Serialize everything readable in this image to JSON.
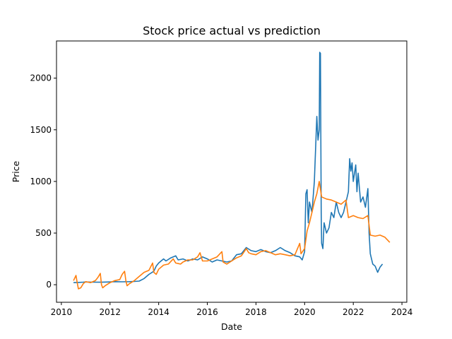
{
  "chart_data": {
    "type": "line",
    "title": "Stock price actual vs prediction",
    "xlabel": "Date",
    "ylabel": "Price",
    "xlim": [
      2009.8,
      2024.2
    ],
    "ylim": [
      -170,
      2360
    ],
    "xticks": [
      {
        "value": 2010,
        "label": "2010"
      },
      {
        "value": 2012,
        "label": "2012"
      },
      {
        "value": 2014,
        "label": "2014"
      },
      {
        "value": 2016,
        "label": "2016"
      },
      {
        "value": 2018,
        "label": "2018"
      },
      {
        "value": 2020,
        "label": "2020"
      },
      {
        "value": 2022,
        "label": "2022"
      },
      {
        "value": 2024,
        "label": "2024"
      }
    ],
    "yticks": [
      {
        "value": 0,
        "label": "0"
      },
      {
        "value": 500,
        "label": "500"
      },
      {
        "value": 1000,
        "label": "1000"
      },
      {
        "value": 1500,
        "label": "1500"
      },
      {
        "value": 2000,
        "label": "2000"
      }
    ],
    "grid": false,
    "series": [
      {
        "color": "#1f77b4",
        "points": [
          [
            2010.5,
            20
          ],
          [
            2010.7,
            22
          ],
          [
            2010.9,
            25
          ],
          [
            2011.0,
            27
          ],
          [
            2011.3,
            25
          ],
          [
            2011.6,
            24
          ],
          [
            2011.9,
            26
          ],
          [
            2012.2,
            30
          ],
          [
            2012.5,
            28
          ],
          [
            2012.8,
            30
          ],
          [
            2013.0,
            32
          ],
          [
            2013.2,
            35
          ],
          [
            2013.4,
            60
          ],
          [
            2013.6,
            100
          ],
          [
            2013.8,
            130
          ],
          [
            2013.9,
            180
          ],
          [
            2014.0,
            210
          ],
          [
            2014.1,
            230
          ],
          [
            2014.2,
            250
          ],
          [
            2014.3,
            230
          ],
          [
            2014.5,
            260
          ],
          [
            2014.7,
            280
          ],
          [
            2014.8,
            240
          ],
          [
            2015.0,
            250
          ],
          [
            2015.2,
            230
          ],
          [
            2015.4,
            250
          ],
          [
            2015.6,
            240
          ],
          [
            2015.8,
            270
          ],
          [
            2016.0,
            250
          ],
          [
            2016.2,
            220
          ],
          [
            2016.4,
            240
          ],
          [
            2016.6,
            230
          ],
          [
            2016.8,
            220
          ],
          [
            2017.0,
            230
          ],
          [
            2017.2,
            290
          ],
          [
            2017.4,
            300
          ],
          [
            2017.6,
            360
          ],
          [
            2017.8,
            330
          ],
          [
            2018.0,
            320
          ],
          [
            2018.2,
            340
          ],
          [
            2018.4,
            320
          ],
          [
            2018.6,
            310
          ],
          [
            2018.8,
            330
          ],
          [
            2019.0,
            360
          ],
          [
            2019.2,
            330
          ],
          [
            2019.4,
            310
          ],
          [
            2019.6,
            280
          ],
          [
            2019.8,
            270
          ],
          [
            2019.9,
            240
          ],
          [
            2020.0,
            320
          ],
          [
            2020.05,
            880
          ],
          [
            2020.1,
            920
          ],
          [
            2020.15,
            600
          ],
          [
            2020.2,
            800
          ],
          [
            2020.3,
            700
          ],
          [
            2020.4,
            1000
          ],
          [
            2020.5,
            1630
          ],
          [
            2020.55,
            1400
          ],
          [
            2020.6,
            1500
          ],
          [
            2020.62,
            2250
          ],
          [
            2020.65,
            2240
          ],
          [
            2020.68,
            700
          ],
          [
            2020.7,
            400
          ],
          [
            2020.75,
            350
          ],
          [
            2020.8,
            600
          ],
          [
            2020.9,
            500
          ],
          [
            2021.0,
            550
          ],
          [
            2021.1,
            700
          ],
          [
            2021.2,
            650
          ],
          [
            2021.3,
            800
          ],
          [
            2021.4,
            700
          ],
          [
            2021.5,
            650
          ],
          [
            2021.6,
            700
          ],
          [
            2021.7,
            800
          ],
          [
            2021.8,
            900
          ],
          [
            2021.85,
            1220
          ],
          [
            2021.9,
            1100
          ],
          [
            2021.95,
            1180
          ],
          [
            2022.0,
            1000
          ],
          [
            2022.1,
            1160
          ],
          [
            2022.15,
            900
          ],
          [
            2022.2,
            1080
          ],
          [
            2022.3,
            800
          ],
          [
            2022.4,
            850
          ],
          [
            2022.5,
            750
          ],
          [
            2022.6,
            930
          ],
          [
            2022.65,
            500
          ],
          [
            2022.7,
            300
          ],
          [
            2022.8,
            200
          ],
          [
            2022.9,
            180
          ],
          [
            2023.0,
            120
          ],
          [
            2023.1,
            170
          ],
          [
            2023.2,
            200
          ]
        ]
      },
      {
        "color": "#ff7f0e",
        "points": [
          [
            2010.5,
            40
          ],
          [
            2010.6,
            90
          ],
          [
            2010.65,
            20
          ],
          [
            2010.7,
            -40
          ],
          [
            2010.8,
            -30
          ],
          [
            2010.9,
            10
          ],
          [
            2011.0,
            30
          ],
          [
            2011.2,
            20
          ],
          [
            2011.4,
            40
          ],
          [
            2011.5,
            70
          ],
          [
            2011.6,
            110
          ],
          [
            2011.65,
            0
          ],
          [
            2011.7,
            -30
          ],
          [
            2011.8,
            -10
          ],
          [
            2012.0,
            20
          ],
          [
            2012.2,
            40
          ],
          [
            2012.4,
            50
          ],
          [
            2012.5,
            100
          ],
          [
            2012.6,
            130
          ],
          [
            2012.65,
            40
          ],
          [
            2012.7,
            -10
          ],
          [
            2012.8,
            10
          ],
          [
            2013.0,
            40
          ],
          [
            2013.2,
            80
          ],
          [
            2013.4,
            120
          ],
          [
            2013.6,
            140
          ],
          [
            2013.75,
            210
          ],
          [
            2013.8,
            120
          ],
          [
            2013.9,
            100
          ],
          [
            2014.0,
            150
          ],
          [
            2014.2,
            190
          ],
          [
            2014.4,
            200
          ],
          [
            2014.6,
            250
          ],
          [
            2014.7,
            210
          ],
          [
            2014.9,
            200
          ],
          [
            2015.0,
            220
          ],
          [
            2015.2,
            240
          ],
          [
            2015.4,
            240
          ],
          [
            2015.6,
            270
          ],
          [
            2015.7,
            310
          ],
          [
            2015.8,
            230
          ],
          [
            2016.0,
            230
          ],
          [
            2016.2,
            250
          ],
          [
            2016.4,
            270
          ],
          [
            2016.6,
            320
          ],
          [
            2016.65,
            220
          ],
          [
            2016.8,
            200
          ],
          [
            2017.0,
            230
          ],
          [
            2017.2,
            260
          ],
          [
            2017.4,
            280
          ],
          [
            2017.6,
            350
          ],
          [
            2017.7,
            310
          ],
          [
            2017.8,
            300
          ],
          [
            2018.0,
            290
          ],
          [
            2018.2,
            320
          ],
          [
            2018.4,
            330
          ],
          [
            2018.6,
            310
          ],
          [
            2018.8,
            290
          ],
          [
            2019.0,
            300
          ],
          [
            2019.2,
            290
          ],
          [
            2019.4,
            280
          ],
          [
            2019.6,
            290
          ],
          [
            2019.8,
            400
          ],
          [
            2019.85,
            300
          ],
          [
            2020.0,
            350
          ],
          [
            2020.1,
            520
          ],
          [
            2020.2,
            600
          ],
          [
            2020.3,
            700
          ],
          [
            2020.4,
            800
          ],
          [
            2020.5,
            880
          ],
          [
            2020.6,
            1000
          ],
          [
            2020.7,
            850
          ],
          [
            2020.9,
            830
          ],
          [
            2021.1,
            820
          ],
          [
            2021.3,
            800
          ],
          [
            2021.5,
            780
          ],
          [
            2021.7,
            820
          ],
          [
            2021.8,
            650
          ],
          [
            2022.0,
            670
          ],
          [
            2022.2,
            650
          ],
          [
            2022.4,
            640
          ],
          [
            2022.6,
            670
          ],
          [
            2022.7,
            480
          ],
          [
            2022.9,
            470
          ],
          [
            2023.1,
            480
          ],
          [
            2023.3,
            460
          ],
          [
            2023.5,
            410
          ]
        ]
      }
    ]
  }
}
